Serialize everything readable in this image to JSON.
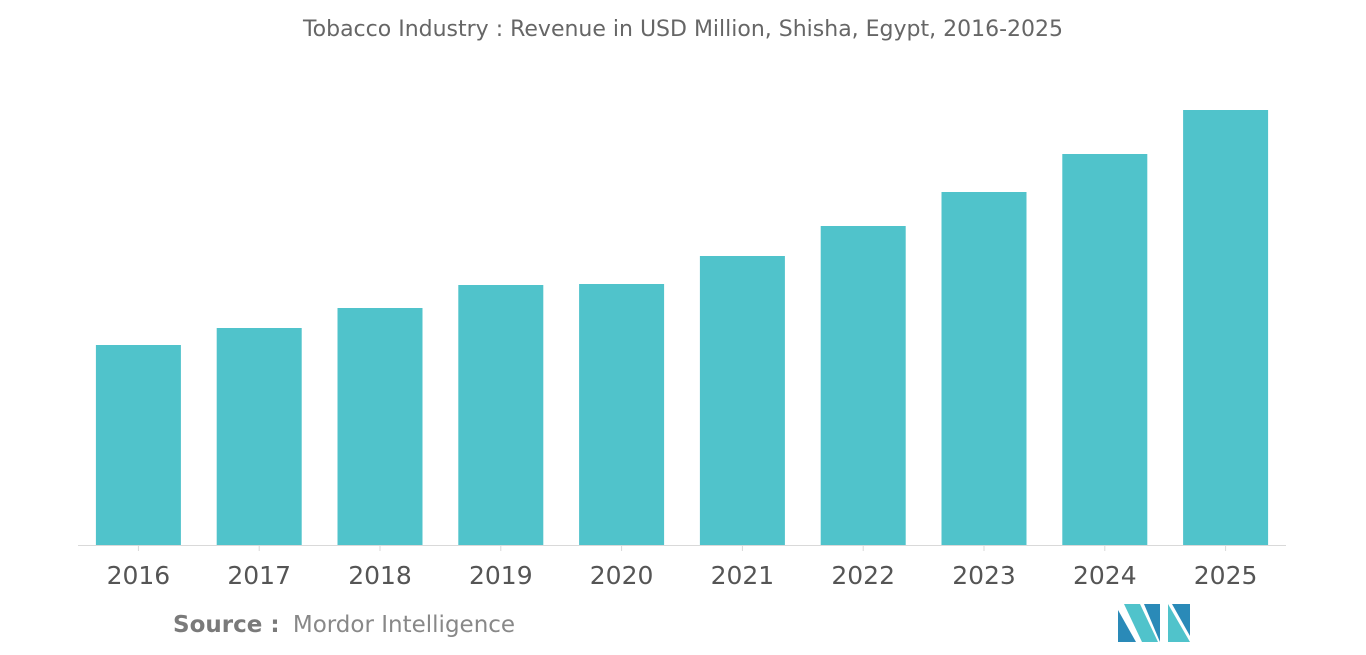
{
  "chart_data": {
    "type": "bar",
    "title": "Tobacco Industry : Revenue in USD Million, Shisha, Egypt, 2016-2025",
    "categories": [
      "2016",
      "2017",
      "2018",
      "2019",
      "2020",
      "2021",
      "2022",
      "2023",
      "2024",
      "2025"
    ],
    "values": [
      200,
      217,
      237,
      260,
      261,
      289,
      319,
      353,
      391,
      435
    ],
    "xlabel": "",
    "ylabel": "",
    "ylim": [
      0,
      435
    ],
    "grid": false,
    "legend": "none",
    "bar_color": "#50c3cb"
  },
  "source": {
    "prefix": "Source :",
    "name": "Mordor Intelligence"
  },
  "logo": {
    "text": "MI",
    "colors": [
      "#2a8ab8",
      "#50c3cb"
    ]
  }
}
